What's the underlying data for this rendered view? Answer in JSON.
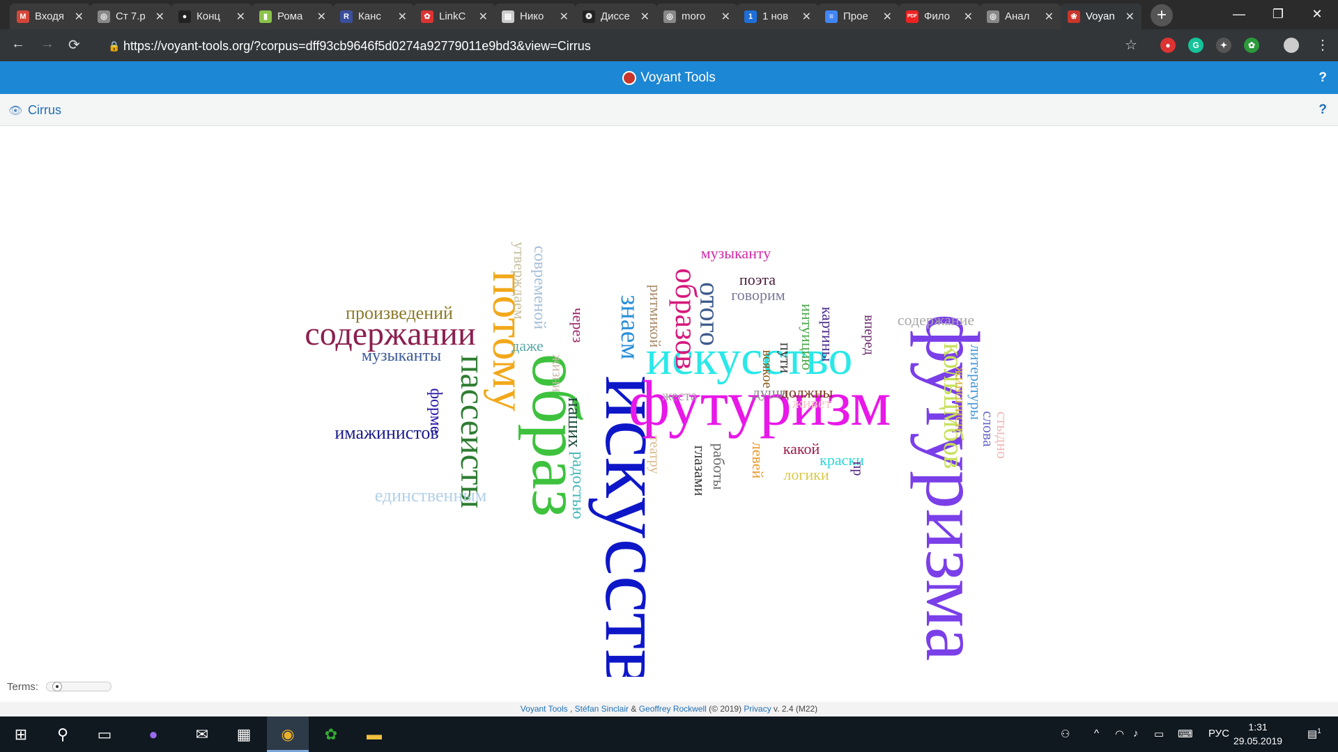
{
  "browser": {
    "tabs": [
      {
        "label": "Входя",
        "icon": "gmail-icon",
        "color": "#d44638",
        "glyph": "M"
      },
      {
        "label": "Ст 7.р",
        "icon": "globe-icon",
        "color": "#888",
        "glyph": "◎"
      },
      {
        "label": "Конц",
        "icon": "github-icon",
        "color": "#222",
        "glyph": "●"
      },
      {
        "label": "Рома",
        "icon": "bars-icon",
        "color": "#8bc34a",
        "glyph": "▮"
      },
      {
        "label": "Канс",
        "icon": "r-icon",
        "color": "#3b4f9e",
        "glyph": "R"
      },
      {
        "label": "LinkC",
        "icon": "linkc-icon",
        "color": "#d33",
        "glyph": "✿"
      },
      {
        "label": "Нико",
        "icon": "book-icon",
        "color": "#ccc",
        "glyph": "▤"
      },
      {
        "label": "Диссе",
        "icon": "paw-icon",
        "color": "#222",
        "glyph": "❂"
      },
      {
        "label": "moro",
        "icon": "globe-icon",
        "color": "#888",
        "glyph": "◎"
      },
      {
        "label": "1 нов",
        "icon": "number-icon",
        "color": "#1e6fd9",
        "glyph": "1"
      },
      {
        "label": "Прое",
        "icon": "docs-icon",
        "color": "#4285f4",
        "glyph": "≡"
      },
      {
        "label": "Фило",
        "icon": "pdf-icon",
        "color": "#e22",
        "glyph": "PDF"
      },
      {
        "label": "Анал",
        "icon": "globe-icon",
        "color": "#888",
        "glyph": "◎"
      },
      {
        "label": "Voyan",
        "icon": "voyant-icon",
        "color": "#c9362b",
        "glyph": "❀"
      }
    ],
    "active_tab": 13,
    "url": "https://voyant-tools.org/?corpus=dff93cb9646f5d0274a92779011e9bd3&view=Cirrus",
    "nav": {
      "back": "←",
      "forward": "→",
      "reload": "⟳"
    }
  },
  "voyant": {
    "title": "Voyant Tools",
    "help": "?",
    "panel_title": "Cirrus",
    "terms_label": "Terms:",
    "terms_slider_value": 0.05
  },
  "footer": {
    "product": "Voyant Tools",
    "sep1": " , ",
    "author1": "Stéfan Sinclair",
    "amp": " & ",
    "author2": "Geoffrey Rockwell",
    "copyright": " (© 2019) ",
    "privacy": "Privacy",
    "version": " v. 2.4 (M22)"
  },
  "cloud_words": [
    {
      "text": "искусства",
      "color": "#0e17c8"
    },
    {
      "text": "футуризма",
      "color": "#7a3fe8"
    },
    {
      "text": "футуризм",
      "color": "#e818e8"
    },
    {
      "text": "искусство",
      "color": "#2ae8e8"
    },
    {
      "text": "образ",
      "color": "#3ec23e"
    },
    {
      "text": "потому",
      "color": "#f2a81a"
    },
    {
      "text": "содержании",
      "color": "#8b1f4f"
    },
    {
      "text": "пассеисты",
      "color": "#2e7d32"
    },
    {
      "text": "образов",
      "color": "#d61a7c"
    },
    {
      "text": "кольцмбов",
      "color": "#c7e05a"
    },
    {
      "text": "отого",
      "color": "#3d5a8c"
    },
    {
      "text": "знаем",
      "color": "#2a8fd8"
    },
    {
      "text": "имажинистов",
      "color": "#1a1a8a"
    },
    {
      "text": "единственным",
      "color": "#b3d0e8"
    },
    {
      "text": "произведений",
      "color": "#8a7a2a"
    },
    {
      "text": "музыканты",
      "color": "#3a5a9a"
    },
    {
      "text": "форме",
      "color": "#2a1aa8"
    },
    {
      "text": "современой",
      "color": "#a8c0d8"
    },
    {
      "text": "утверждаем",
      "color": "#c8c0a0"
    },
    {
      "text": "жизни",
      "color": "#c9b8a8"
    },
    {
      "text": "даже",
      "color": "#5aa8a8"
    },
    {
      "text": "через",
      "color": "#9a2a6a"
    },
    {
      "text": "наших",
      "color": "#1a4a3a"
    },
    {
      "text": "радостью",
      "color": "#48b8b8"
    },
    {
      "text": "ритмикой",
      "color": "#a88a6a"
    },
    {
      "text": "музыканту",
      "color": "#d22aa8"
    },
    {
      "text": "поэта",
      "color": "#4a1a3a"
    },
    {
      "text": "говорим",
      "color": "#7a7a9a"
    },
    {
      "text": "всякое",
      "color": "#8a5a1a"
    },
    {
      "text": "пути",
      "color": "#3a3a3a"
    },
    {
      "text": "интуицию",
      "color": "#4aa84a"
    },
    {
      "text": "картины",
      "color": "#4a2a8a"
    },
    {
      "text": "вперед",
      "color": "#6a2a6a"
    },
    {
      "text": "содержание",
      "color": "#a8a8a8"
    },
    {
      "text": "литературы",
      "color": "#4a9ad8"
    },
    {
      "text": "живописи",
      "color": "#d8b84a"
    },
    {
      "text": "слова",
      "color": "#6a6ac8"
    },
    {
      "text": "стыдно",
      "color": "#f0b8b8"
    },
    {
      "text": "жеста",
      "color": "#a89aa8"
    },
    {
      "text": "души",
      "color": "#8a8a8a"
    },
    {
      "text": "должны",
      "color": "#7a3a1a"
    },
    {
      "text": "живет",
      "color": "#f8c8c8"
    },
    {
      "text": "какой",
      "color": "#9a1a4a"
    },
    {
      "text": "краски",
      "color": "#2ad8d8"
    },
    {
      "text": "логики",
      "color": "#d8c84a"
    },
    {
      "text": "пр",
      "color": "#4a1a7a"
    },
    {
      "text": "глазами",
      "color": "#3a3a3a"
    },
    {
      "text": "работы",
      "color": "#6a6a6a"
    },
    {
      "text": "левей",
      "color": "#e89a2a"
    },
    {
      "text": "театру",
      "color": "#d8b88a"
    }
  ],
  "taskbar": {
    "lang": "РУС",
    "time": "1:31",
    "date": "29.05.2019",
    "notif_count": "1"
  }
}
